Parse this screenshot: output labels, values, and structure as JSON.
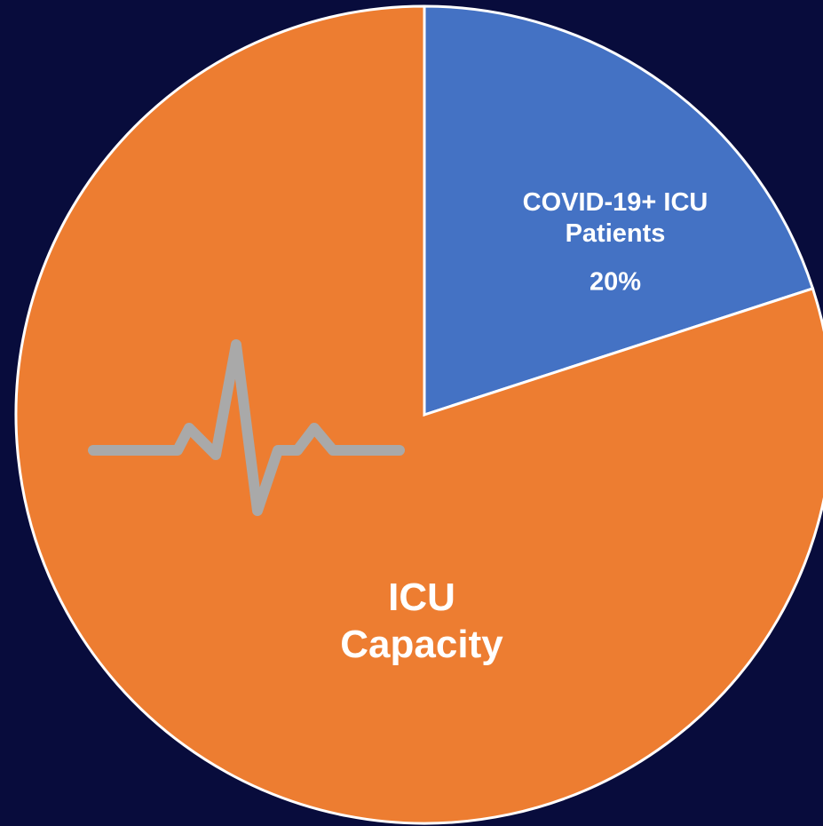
{
  "chart_data": {
    "type": "pie",
    "categories": [
      "COVID-19+ ICU Patients",
      "ICU Capacity"
    ],
    "values": [
      20,
      80
    ],
    "value_labels": [
      "20%",
      null
    ],
    "colors": [
      "#4472c4",
      "#ed7d31"
    ]
  }
}
